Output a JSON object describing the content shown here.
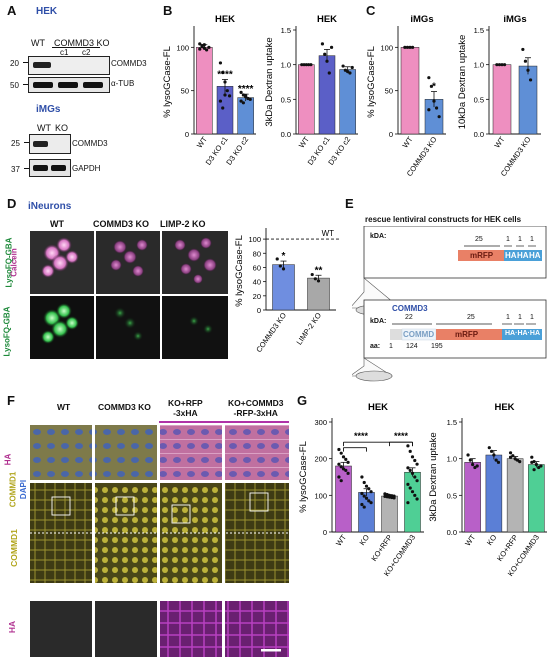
{
  "panels": {
    "A": {
      "letter": "A",
      "hek_title": "HEK",
      "blot1": {
        "cond_wt": "WT",
        "cond_ko": "COMMD3 KO",
        "clone1": "c1",
        "clone2": "c2",
        "mw1": "20",
        "mw2": "50",
        "band1": "COMMD3",
        "band2": "α-TUB"
      },
      "img_title": "iMGs",
      "blot2": {
        "cond_wt": "WT",
        "cond_ko": "KO",
        "mw1": "25",
        "mw2": "37",
        "band1": "COMMD3",
        "band2": "GAPDH"
      }
    },
    "B": {
      "letter": "B"
    },
    "C": {
      "letter": "C"
    },
    "D": {
      "letter": "D",
      "title": "iNeurons",
      "cols": [
        "WT",
        "COMMD3 KO",
        "LIMP-2 KO"
      ],
      "row1_label_a": "LysoFQ-GBA",
      "row1_label_b": "Calcein",
      "row2_label": "LysoFQ-GBA"
    },
    "E": {
      "letter": "E",
      "title": "rescue lentiviral constructs for HEK cells",
      "box1": {
        "kda": "kDA:",
        "n25": "25",
        "n1a": "1",
        "n1b": "1",
        "n1c": "1",
        "mrfp": "mRFP",
        "ha1": "HA",
        "ha2": "HA",
        "ha3": "HA"
      },
      "box2": {
        "name": "COMMD3",
        "kda": "kDA:",
        "n22": "22",
        "n25": "25",
        "n1a": "1",
        "n1b": "1",
        "n1c": "1",
        "aa": "aa:",
        "aa1": "1",
        "aa124": "124",
        "aa195": "195",
        "commd": "COMMD",
        "mrfp": "mRFP",
        "ha": "HA·HA·HA"
      }
    },
    "F": {
      "letter": "F",
      "cols": [
        "WT",
        "COMMD3 KO",
        "KO+RFP\n-3xHA",
        "KO+COMMD3\n-RFP-3xHA"
      ],
      "row1_label_a": "HA",
      "row1_label_b": "COMMD1",
      "row1_label_c": "DAPI",
      "row2_label": "COMMD1",
      "row3_label": "HA"
    },
    "G": {
      "letter": "G"
    }
  },
  "chart_data": [
    {
      "id": "B1",
      "type": "bar",
      "title": "HEK",
      "ylabel": "% lysoGCase-FL",
      "categories": [
        "WT",
        "D3 KO c1",
        "D3 KO c2"
      ],
      "values": [
        100,
        55,
        42
      ],
      "errors": [
        3,
        8,
        4
      ],
      "ylim": [
        0,
        120
      ],
      "yticks": [
        "0",
        "50",
        "100"
      ],
      "colors": [
        "#ee8fc0",
        "#5b5fc7",
        "#5f8fd6"
      ],
      "annotations": [
        "",
        "****",
        "****"
      ],
      "points": [
        [
          104,
          102,
          99,
          97,
          100,
          98,
          101,
          103
        ],
        [
          82,
          71,
          60,
          50,
          44,
          38,
          30,
          45
        ],
        [
          48,
          45,
          44,
          41,
          40,
          38,
          36,
          43
        ]
      ]
    },
    {
      "id": "B2",
      "type": "bar",
      "title": "HEK",
      "ylabel": "3kDa Dextran uptake",
      "categories": [
        "WT",
        "D3 KO c1",
        "D3 KO c2"
      ],
      "values": [
        1.0,
        1.13,
        0.93
      ],
      "errors": [
        0.01,
        0.09,
        0.04
      ],
      "ylim": [
        0,
        1.5
      ],
      "yticks": [
        "0.0",
        "0.5",
        "1.0",
        "1.5"
      ],
      "colors": [
        "#ee8fc0",
        "#5b5fc7",
        "#5f8fd6"
      ],
      "points": [
        [
          1.0,
          1.0,
          1.0,
          1.0,
          1.0
        ],
        [
          1.3,
          1.15,
          1.05,
          0.88,
          1.25
        ],
        [
          0.98,
          0.92,
          0.9,
          0.88,
          0.96
        ]
      ]
    },
    {
      "id": "C1",
      "type": "bar",
      "title": "iMGs",
      "ylabel": "% lysoGCase-FL",
      "categories": [
        "WT",
        "COMMD3 KO"
      ],
      "values": [
        100,
        40
      ],
      "errors": [
        0.5,
        9
      ],
      "ylim": [
        0,
        120
      ],
      "yticks": [
        "0",
        "50",
        "100"
      ],
      "colors": [
        "#ee8fc0",
        "#5f8fd6"
      ],
      "annotations": [
        "",
        "*"
      ],
      "points": [
        [
          100,
          100,
          100,
          100
        ],
        [
          65,
          55,
          38,
          30,
          20,
          28
        ]
      ]
    },
    {
      "id": "C2",
      "type": "bar",
      "title": "iMGs",
      "ylabel": "10kDa Dextran uptake",
      "categories": [
        "WT",
        "COMMD3 KO"
      ],
      "values": [
        1.0,
        0.98
      ],
      "errors": [
        0.01,
        0.12
      ],
      "ylim": [
        0,
        1.5
      ],
      "yticks": [
        "0.0",
        "0.5",
        "1.0",
        "1.5"
      ],
      "colors": [
        "#ee8fc0",
        "#5f8fd6"
      ],
      "points": [
        [
          1.0,
          1.0,
          1.0,
          1.0
        ],
        [
          1.22,
          1.05,
          0.92,
          0.78
        ]
      ]
    },
    {
      "id": "D",
      "type": "bar",
      "title": "",
      "ylabel": "% lysoGCase-FL",
      "categories": [
        "COMMD3 KO",
        "LIMP-2 KO"
      ],
      "values": [
        64,
        45
      ],
      "errors": [
        5,
        4
      ],
      "ylim": [
        0,
        110
      ],
      "yticks": [
        "0",
        "20",
        "40",
        "60",
        "80",
        "100"
      ],
      "colors": [
        "#6f8ee0",
        "#a8a8a8"
      ],
      "annotations": [
        "*",
        "**"
      ],
      "refline": 100,
      "refline_label": "WT",
      "points": [
        [
          72,
          62,
          58
        ],
        [
          50,
          44,
          41
        ]
      ]
    },
    {
      "id": "G1",
      "type": "bar",
      "title": "HEK",
      "ylabel": "% lysoGCase-FL",
      "categories": [
        "WT",
        "KO",
        "KO+RFP",
        "KO+COMMD3"
      ],
      "values": [
        180,
        108,
        98,
        163
      ],
      "errors": [
        10,
        10,
        3,
        12
      ],
      "ylim": [
        0,
        300
      ],
      "yticks": [
        "0",
        "100",
        "200",
        "300"
      ],
      "colors": [
        "#b860c8",
        "#5b7fd6",
        "#b4b4b4",
        "#4fcf95"
      ],
      "sig": [
        {
          "from": 0,
          "to": 3,
          "label": "****",
          "y": 245
        },
        {
          "from": 2,
          "to": 3,
          "label": "****",
          "y": 245
        },
        {
          "from": 0,
          "to": 1,
          "label": "",
          "y": 230
        }
      ],
      "points": [
        [
          225,
          215,
          205,
          198,
          190,
          185,
          178,
          172,
          168,
          160,
          150,
          140
        ],
        [
          150,
          135,
          125,
          118,
          110,
          105,
          98,
          92,
          85,
          80,
          75,
          68
        ],
        [
          104,
          102,
          100,
          99,
          98,
          97,
          96,
          95,
          94,
          93
        ],
        [
          235,
          220,
          205,
          195,
          185,
          175,
          168,
          160,
          150,
          140,
          130,
          120,
          110,
          100,
          90,
          80
        ]
      ]
    },
    {
      "id": "G2",
      "type": "bar",
      "title": "HEK",
      "ylabel": "3kDa Dextran uptake",
      "categories": [
        "WT",
        "KO",
        "KO+RFP",
        "KO+COMMD3"
      ],
      "values": [
        0.95,
        1.05,
        1.0,
        0.92
      ],
      "errors": [
        0.05,
        0.06,
        0.03,
        0.04
      ],
      "ylim": [
        0,
        1.5
      ],
      "yticks": [
        "0.0",
        "0.5",
        "1.0",
        "1.5"
      ],
      "colors": [
        "#b860c8",
        "#5b7fd6",
        "#b4b4b4",
        "#4fcf95"
      ],
      "points": [
        [
          1.05,
          0.98,
          0.92,
          0.88,
          0.9
        ],
        [
          1.15,
          1.1,
          1.05,
          0.98,
          0.95
        ],
        [
          1.08,
          1.04,
          1.0,
          0.98,
          0.96,
          1.02
        ],
        [
          1.02,
          0.96,
          0.92,
          0.88,
          0.9,
          0.95,
          0.85
        ]
      ]
    }
  ]
}
